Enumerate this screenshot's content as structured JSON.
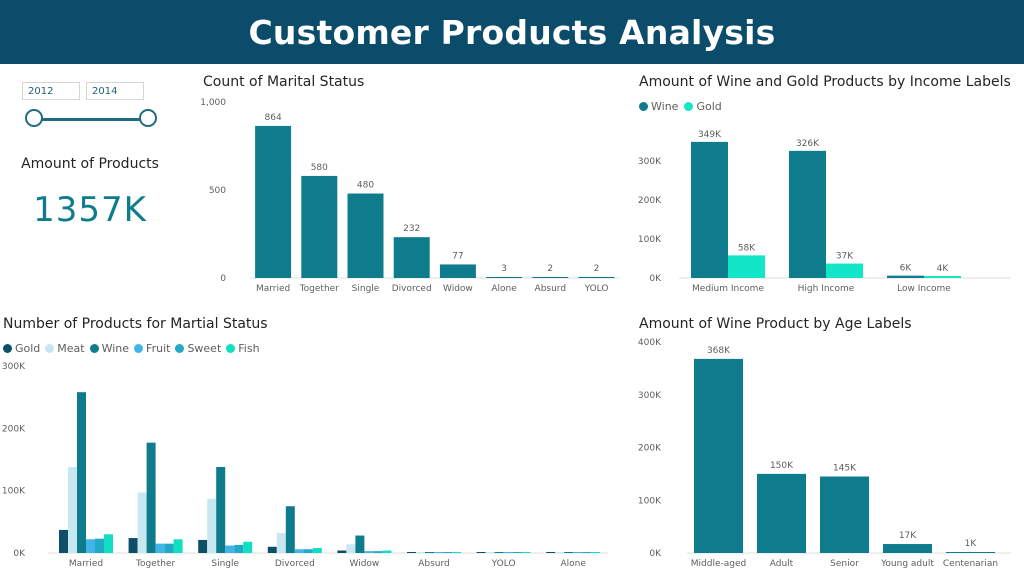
{
  "header": {
    "title": "Customer Products Analysis"
  },
  "slicer": {
    "start_year": "2012",
    "end_year": "2014"
  },
  "kpi": {
    "label": "Amount of Products",
    "value": "1357K"
  },
  "colors": {
    "banner": "#0b4c6a",
    "teal": "#0e7c8c",
    "gold_dark": "#0d4f68",
    "meat": "#c7e7f1",
    "fruit": "#41b4e8",
    "sweet": "#21aac6",
    "fish": "#11dfc2",
    "gold_light": "#12e6c8"
  },
  "chart_data": [
    {
      "type": "bar",
      "title": "Count of Marital Status",
      "categories": [
        "Married",
        "Together",
        "Single",
        "Divorced",
        "Widow",
        "Alone",
        "Absurd",
        "YOLO"
      ],
      "values": [
        864,
        580,
        480,
        232,
        77,
        3,
        2,
        2
      ],
      "data_labels": [
        "864",
        "580",
        "480",
        "232",
        "77",
        "3",
        "2",
        "2"
      ],
      "yticks": [
        "1,000",
        "500",
        "0"
      ],
      "ylim": [
        0,
        1000
      ],
      "grid": false
    },
    {
      "type": "bar",
      "title": "Amount of Wine and Gold Products by Income Labels",
      "categories": [
        "Medium Income",
        "High Income",
        "Low Income"
      ],
      "series": [
        {
          "name": "Wine",
          "values": [
            349000,
            326000,
            6000
          ],
          "labels": [
            "349K",
            "326K",
            "6K"
          ]
        },
        {
          "name": "Gold",
          "values": [
            58000,
            37000,
            4000
          ],
          "labels": [
            "58K",
            "37K",
            "4K"
          ]
        }
      ],
      "yticks": [
        "300K",
        "200K",
        "100K",
        "0K"
      ],
      "ylim": [
        0,
        400000
      ],
      "legend": "top-left",
      "grid": false
    },
    {
      "type": "bar",
      "title": "Number of Products for Martial Status",
      "categories": [
        "Married",
        "Together",
        "Single",
        "Divorced",
        "Widow",
        "Absurd",
        "YOLO",
        "Alone"
      ],
      "series": [
        {
          "name": "Gold",
          "values": [
            37000,
            24000,
            21000,
            10000,
            4000,
            300,
            200,
            300
          ]
        },
        {
          "name": "Meat",
          "values": [
            138000,
            97000,
            87000,
            32000,
            14000,
            1200,
            400,
            200
          ]
        },
        {
          "name": "Wine",
          "values": [
            258000,
            177000,
            138000,
            75000,
            28000,
            800,
            700,
            600
          ]
        },
        {
          "name": "Fruit",
          "values": [
            22000,
            15000,
            12000,
            6000,
            3000,
            300,
            100,
            100
          ]
        },
        {
          "name": "Sweet",
          "values": [
            23000,
            15000,
            13000,
            6000,
            3000,
            300,
            100,
            100
          ]
        },
        {
          "name": "Fish",
          "values": [
            30000,
            22000,
            18000,
            8000,
            4000,
            400,
            100,
            100
          ]
        }
      ],
      "yticks": [
        "300K",
        "200K",
        "100K",
        "0K"
      ],
      "ylim": [
        0,
        300000
      ],
      "legend": "top-left",
      "grid": false
    },
    {
      "type": "bar",
      "title": "Amount of Wine Product by Age Labels",
      "categories": [
        "Middle-aged",
        "Adult",
        "Senior",
        "Young adult",
        "Centenarian"
      ],
      "values": [
        368000,
        150000,
        145000,
        17000,
        1000
      ],
      "data_labels": [
        "368K",
        "150K",
        "145K",
        "17K",
        "1K"
      ],
      "yticks": [
        "400K",
        "300K",
        "200K",
        "100K",
        "0K"
      ],
      "ylim": [
        0,
        400000
      ],
      "grid": false
    }
  ]
}
